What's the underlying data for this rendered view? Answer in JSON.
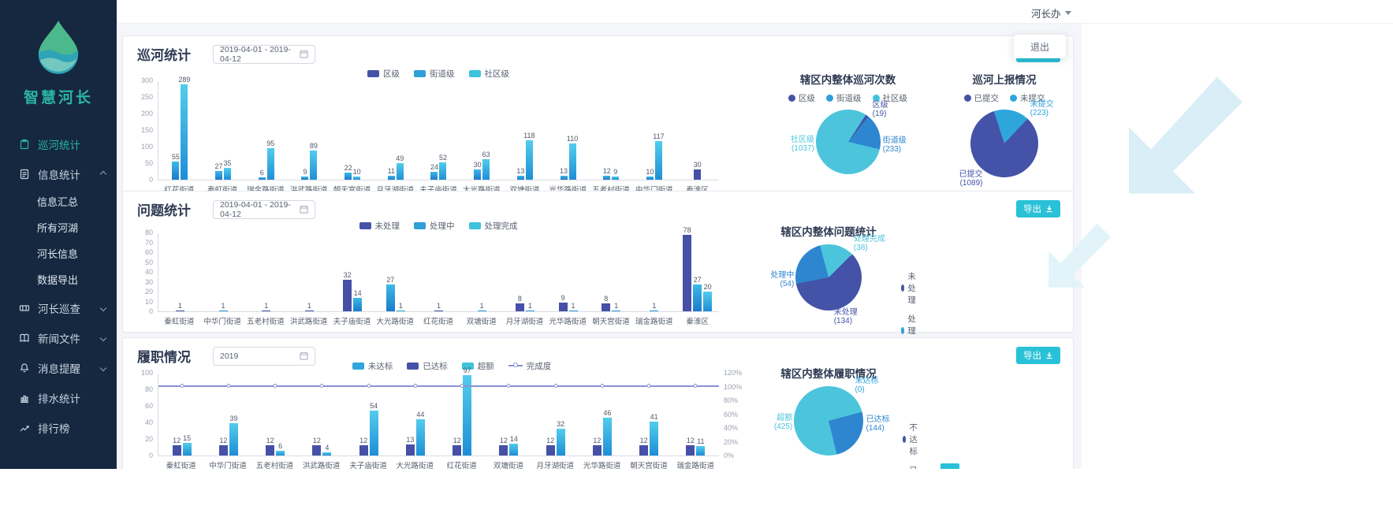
{
  "colors": {
    "accent": "#29c1d7",
    "sidebar_bg": "#152840",
    "active": "#2ab5a5",
    "indigo": "#4453a8",
    "blue": "#2e86d0",
    "teal": "#4cc5dc",
    "cyan": "#2ea6dc",
    "line": "#8892d4"
  },
  "header": {
    "office": "河长办",
    "logout": "退出"
  },
  "sidebar": {
    "brand": "智慧河长",
    "items": [
      {
        "label": "巡河统计",
        "icon": "clipboard-icon",
        "active": true
      },
      {
        "label": "信息统计",
        "icon": "document-icon",
        "chevron": "up",
        "children": [
          "信息汇总",
          "所有河湖",
          "河长信息",
          "数据导出"
        ]
      },
      {
        "label": "河长巡查",
        "icon": "patrol-icon",
        "chevron": "down"
      },
      {
        "label": "新闻文件",
        "icon": "news-icon",
        "chevron": "down"
      },
      {
        "label": "消息提醒",
        "icon": "bell-icon",
        "chevron": "down"
      },
      {
        "label": "排水统计",
        "icon": "drain-chart-icon"
      },
      {
        "label": "排行榜",
        "icon": "ranking-icon"
      }
    ]
  },
  "panels": {
    "patrol": {
      "title": "巡河统计",
      "date_range": "2019-04-01 - 2019-04-12",
      "export_label": "导出",
      "chart_data": {
        "type": "bar",
        "categories": [
          "红花街道",
          "秦虹街道",
          "瑞金路街道",
          "洪武路街道",
          "朝天宫街道",
          "月牙湖街道",
          "夫子庙街道",
          "大光路街道",
          "双塘街道",
          "光华路街道",
          "五老村街道",
          "中华门街道",
          "秦淮区"
        ],
        "series": [
          {
            "name": "区级",
            "color": "indigo",
            "values": [
              0,
              0,
              0,
              0,
              0,
              0,
              0,
              0,
              0,
              0,
              0,
              0,
              30
            ]
          },
          {
            "name": "街道级",
            "color": "blue",
            "values": [
              55,
              27,
              6,
              9,
              22,
              11,
              24,
              30,
              13,
              13,
              12,
              10,
              0
            ]
          },
          {
            "name": "社区级",
            "color": "teal",
            "values": [
              289,
              35,
              95,
              89,
              10,
              49,
              52,
              63,
              118,
              110,
              9,
              117,
              0
            ]
          }
        ],
        "ylim": [
          0,
          300
        ],
        "yticks": [
          0,
          50,
          100,
          150,
          200,
          250,
          300
        ],
        "legend_position": "top"
      },
      "pies": [
        {
          "title": "辖区内整体巡河次数",
          "legend": [
            "区级",
            "街道级",
            "社区级"
          ],
          "legend_colors": [
            "indigo",
            "blue",
            "teal"
          ],
          "rotate": 33,
          "slices": [
            {
              "label": "区级",
              "value": 19,
              "color": "indigo",
              "pos": "tr"
            },
            {
              "label": "街道级",
              "value": 233,
              "color": "blue",
              "pos": "r"
            },
            {
              "label": "社区级",
              "value": 1037,
              "color": "teal",
              "pos": "l"
            }
          ]
        },
        {
          "title": "巡河上报情况",
          "legend": [
            "已提交",
            "未提交"
          ],
          "legend_colors": [
            "indigo",
            "cyan"
          ],
          "rotate": -18,
          "slices": [
            {
              "label": "未提交",
              "value": 223,
              "color": "cyan",
              "pos": "tr"
            },
            {
              "label": "已提交",
              "value": 1089,
              "color": "indigo",
              "pos": "bl"
            }
          ]
        }
      ]
    },
    "issues": {
      "title": "问题统计",
      "date_range": "2019-04-01 - 2019-04-12",
      "export_label": "导出",
      "chart_data": {
        "type": "bar",
        "categories": [
          "秦虹街道",
          "中华门街道",
          "五老村街道",
          "洪武路街道",
          "夫子庙街道",
          "大光路街道",
          "红花街道",
          "双塘街道",
          "月牙湖街道",
          "光华路街道",
          "朝天宫街道",
          "瑞金路街道",
          "秦淮区"
        ],
        "series": [
          {
            "name": "未处理",
            "color": "indigo",
            "values": [
              1,
              0,
              1,
              1,
              32,
              0,
              1,
              0,
              8,
              9,
              8,
              0,
              78
            ]
          },
          {
            "name": "处理中",
            "color": "blue",
            "values": [
              0,
              1,
              0,
              0,
              14,
              27,
              0,
              1,
              1,
              1,
              1,
              1,
              27
            ]
          },
          {
            "name": "处理完成",
            "color": "teal",
            "values": [
              0,
              0,
              0,
              0,
              0,
              1,
              0,
              0,
              0,
              0,
              0,
              0,
              20
            ]
          }
        ],
        "ylim": [
          0,
          80
        ],
        "yticks": [
          0,
          10,
          20,
          30,
          40,
          50,
          60,
          70,
          80
        ],
        "legend_position": "top"
      },
      "pie": {
        "title": "辖区内整体问题统计",
        "legend": [
          "未处理",
          "处理中",
          "处理完成"
        ],
        "legend_colors": [
          "indigo",
          "blue",
          "teal"
        ],
        "rotate": -15,
        "slices": [
          {
            "label": "处理完成",
            "value": 38,
            "color": "teal",
            "pos": "tr"
          },
          {
            "label": "未处理",
            "value": 134,
            "color": "indigo",
            "pos": "b"
          },
          {
            "label": "处理中",
            "value": 54,
            "color": "blue",
            "pos": "l"
          }
        ]
      }
    },
    "duty": {
      "title": "履职情况",
      "date_range": "2019",
      "export_label": "导出",
      "chart_data": {
        "type": "bar+line",
        "categories": [
          "秦虹街道",
          "中华门街道",
          "五老村街道",
          "洪武路街道",
          "夫子庙街道",
          "大光路街道",
          "红花街道",
          "双塘街道",
          "月牙湖街道",
          "光华路街道",
          "朝天宫街道",
          "瑞金路街道"
        ],
        "series": [
          {
            "name": "未达标",
            "color": "cyan",
            "values": [
              0,
              0,
              0,
              0,
              0,
              0,
              0,
              0,
              0,
              0,
              0,
              0
            ]
          },
          {
            "name": "已达标",
            "color": "indigo",
            "values": [
              12,
              12,
              12,
              12,
              12,
              13,
              12,
              12,
              12,
              12,
              12,
              12
            ]
          },
          {
            "name": "超额",
            "color": "teal",
            "values": [
              15,
              39,
              6,
              4,
              54,
              44,
              97,
              14,
              32,
              46,
              41,
              11
            ]
          }
        ],
        "line_series": {
          "name": "完成度",
          "values_percent": [
            100,
            100,
            100,
            100,
            100,
            100,
            100,
            100,
            100,
            100,
            100,
            100
          ]
        },
        "ylim": [
          0,
          100
        ],
        "yticks": [
          0,
          20,
          40,
          60,
          80,
          100
        ],
        "ylim_right_percent": [
          0,
          120
        ],
        "yticks_right": [
          "0%",
          "20%",
          "40%",
          "60%",
          "80%",
          "100%",
          "120%"
        ]
      },
      "pie": {
        "title": "辖区内整体履职情况",
        "legend": [
          "不达标",
          "已达标",
          "超额"
        ],
        "legend_colors": [
          "indigo",
          "blue",
          "teal"
        ],
        "rotate": 75,
        "slices": [
          {
            "label": "未达标",
            "value": 0,
            "color": "cyan",
            "pos": "tr"
          },
          {
            "label": "已达标",
            "value": 144,
            "color": "blue",
            "pos": "r"
          },
          {
            "label": "超额",
            "value": 425,
            "color": "teal",
            "pos": "l"
          }
        ]
      }
    }
  }
}
